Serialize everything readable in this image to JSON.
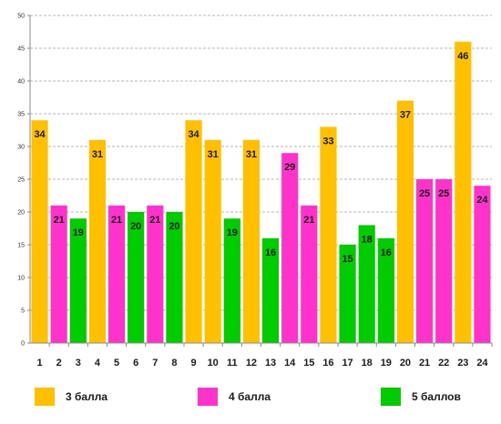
{
  "chart_data": {
    "type": "bar",
    "categories": [
      "1",
      "2",
      "3",
      "4",
      "5",
      "6",
      "7",
      "8",
      "9",
      "10",
      "11",
      "12",
      "13",
      "14",
      "15",
      "16",
      "17",
      "18",
      "19",
      "20",
      "21",
      "22",
      "23",
      "24"
    ],
    "values": [
      34,
      21,
      19,
      31,
      21,
      20,
      21,
      20,
      34,
      31,
      19,
      31,
      16,
      29,
      21,
      33,
      15,
      18,
      16,
      37,
      25,
      25,
      46,
      24
    ],
    "bar_series": [
      0,
      1,
      2,
      0,
      1,
      2,
      1,
      2,
      0,
      0,
      2,
      0,
      2,
      1,
      1,
      0,
      2,
      2,
      2,
      0,
      1,
      1,
      0,
      1
    ],
    "series": [
      {
        "name": "3 балла",
        "color": "#ffc000"
      },
      {
        "name": "4 балла",
        "color": "#ff33cc"
      },
      {
        "name": "5 баллов",
        "color": "#00cc00"
      }
    ],
    "title": "",
    "xlabel": "",
    "ylabel": "",
    "ylim": [
      0,
      50
    ],
    "yticks": [
      0,
      5,
      10,
      15,
      20,
      25,
      30,
      35,
      40,
      45,
      50
    ],
    "grid": true,
    "legend_position": "bottom"
  }
}
